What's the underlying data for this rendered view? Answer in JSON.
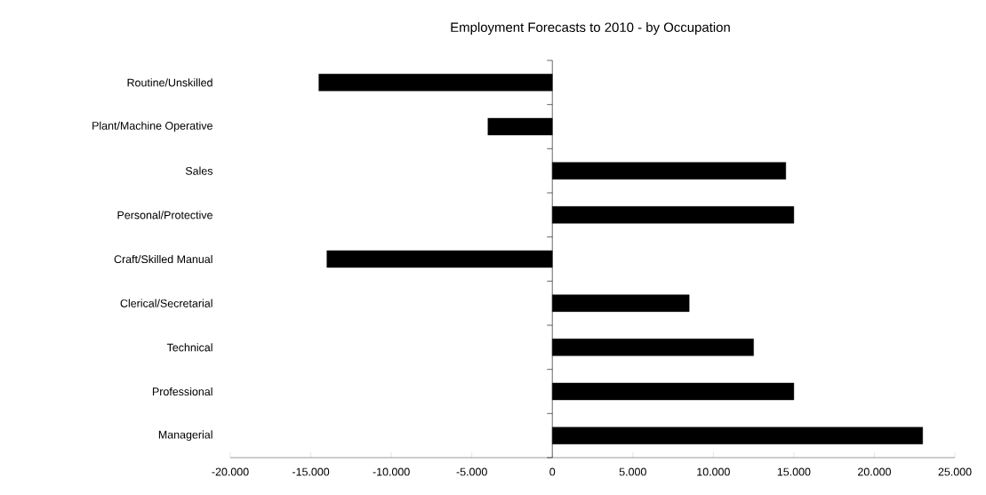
{
  "chart_data": {
    "type": "bar",
    "orientation": "horizontal",
    "title": "Employment Forecasts to 2010 - by Occupation",
    "categories": [
      "Routine/Unskilled",
      "Plant/Machine Operative",
      "Sales",
      "Personal/Protective",
      "Craft/Skilled Manual",
      "Clerical/Secretarial",
      "Technical",
      "Professional",
      "Managerial"
    ],
    "values": [
      -14500,
      -4000,
      14500,
      15000,
      -14000,
      8500,
      12500,
      15000,
      23000
    ],
    "color": "#000000",
    "xlim": [
      -20000,
      25000
    ],
    "xticks": [
      {
        "value": -20000,
        "label": "-20.000"
      },
      {
        "value": -15000,
        "label": "-15.000"
      },
      {
        "value": -10000,
        "label": "-10.000"
      },
      {
        "value": -5000,
        "label": "-5.000"
      },
      0,
      {
        "value": 5000,
        "label": "5.000"
      },
      {
        "value": 10000,
        "label": "10.000"
      },
      {
        "value": 15000,
        "label": "15.000"
      },
      {
        "value": 20000,
        "label": "20.000"
      },
      {
        "value": 25000,
        "label": "25.000"
      }
    ]
  }
}
